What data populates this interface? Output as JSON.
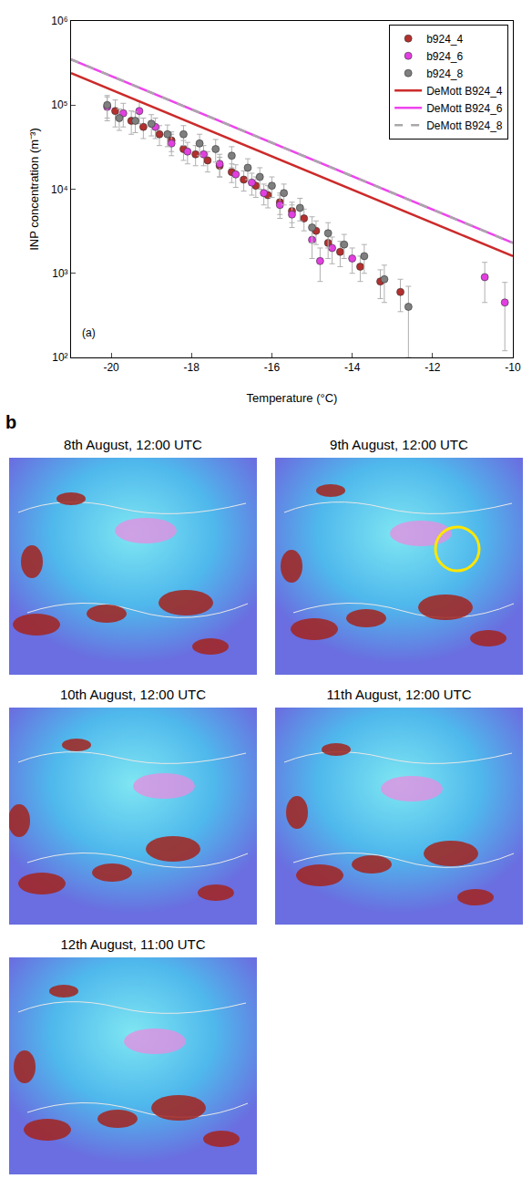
{
  "chart_data": {
    "type": "scatter",
    "panel_label": "a",
    "annotation": "(a)",
    "x_label": "Temperature (°C)",
    "y_label": "INP concentration (m⁻³)",
    "log": "y",
    "grid": false,
    "legend": "top-right",
    "xlim": [
      -21,
      -10
    ],
    "xticks": [
      -20,
      -18,
      -16,
      -14,
      -12,
      -10
    ],
    "ylim": [
      100,
      1000000
    ],
    "yticks": [
      {
        "value": 100,
        "label": "10²"
      },
      {
        "value": 1000,
        "label": "10³"
      },
      {
        "value": 10000,
        "label": "10⁴"
      },
      {
        "value": 100000,
        "label": "10⁵"
      },
      {
        "value": 1000000,
        "label": "10⁶"
      }
    ],
    "series": [
      {
        "name": "b924_4",
        "type": "scatter",
        "marker": "circle",
        "color": "#b3302e",
        "x": [
          -19.9,
          -19.5,
          -19.2,
          -18.8,
          -18.5,
          -18.2,
          -17.9,
          -17.6,
          -17.3,
          -17.0,
          -16.7,
          -16.4,
          -16.1,
          -15.8,
          -15.5,
          -15.2,
          -14.9,
          -14.6,
          -14.3,
          -13.8,
          -13.3,
          -12.8
        ],
        "values": [
          85000,
          65000,
          55000,
          45000,
          38000,
          30000,
          26000,
          22000,
          19000,
          16000,
          13000,
          11000,
          8500,
          7000,
          5500,
          4500,
          3200,
          2300,
          1800,
          1200,
          800,
          600
        ],
        "error": [
          30000,
          20000,
          15000,
          12000,
          10000,
          8000,
          7000,
          6000,
          5000,
          4000,
          3500,
          3000,
          2500,
          2000,
          1500,
          1300,
          1000,
          800,
          600,
          400,
          300,
          250
        ]
      },
      {
        "name": "b924_6",
        "type": "scatter",
        "marker": "circle",
        "color": "#e23fe0",
        "x": [
          -20.1,
          -19.7,
          -19.3,
          -18.9,
          -18.5,
          -18.1,
          -17.7,
          -17.3,
          -16.9,
          -16.5,
          -16.2,
          -15.8,
          -15.5,
          -15.0,
          -14.8,
          -14.5,
          -14.0,
          -10.7,
          -10.2
        ],
        "values": [
          95000,
          80000,
          85000,
          55000,
          35000,
          28000,
          26000,
          20000,
          15000,
          12000,
          9000,
          6500,
          5000,
          2500,
          1400,
          2000,
          1500,
          900,
          450
        ],
        "error": [
          30000,
          25000,
          25000,
          15000,
          10000,
          8000,
          7000,
          6000,
          4500,
          3500,
          2500,
          2000,
          1500,
          1000,
          600,
          700,
          500,
          450,
          330
        ]
      },
      {
        "name": "b924_8",
        "type": "scatter",
        "marker": "circle",
        "color": "#7f7f7f",
        "x": [
          -20.1,
          -19.8,
          -19.4,
          -19.0,
          -18.6,
          -18.2,
          -17.8,
          -17.4,
          -17.0,
          -16.6,
          -16.3,
          -16.0,
          -15.7,
          -15.3,
          -15.0,
          -14.6,
          -14.2,
          -13.7,
          -13.2,
          -12.6
        ],
        "values": [
          100000,
          70000,
          65000,
          60000,
          45000,
          45000,
          35000,
          30000,
          25000,
          18000,
          14000,
          11000,
          9000,
          6000,
          3500,
          3000,
          2200,
          1600,
          850,
          400
        ],
        "error": [
          30000,
          20000,
          18000,
          17000,
          13000,
          12000,
          10000,
          9000,
          7000,
          5000,
          4000,
          3000,
          2500,
          1800,
          1200,
          1000,
          700,
          600,
          400,
          300
        ]
      },
      {
        "name": "DeMott B924_4",
        "type": "line",
        "line_style": "solid",
        "color": "#cc2a2a",
        "x": [
          -21,
          -10
        ],
        "values": [
          240000,
          1600
        ]
      },
      {
        "name": "DeMott B924_6",
        "type": "line",
        "line_style": "solid",
        "color": "#ee44ee",
        "x": [
          -21,
          -10
        ],
        "values": [
          350000,
          2300
        ]
      },
      {
        "name": "DeMott B924_8",
        "type": "line",
        "line_style": "dash",
        "color": "#a8a8a8",
        "x": [
          -21,
          -10
        ],
        "values": [
          350000,
          2300
        ]
      }
    ]
  },
  "panel_b": {
    "label": "b",
    "images": [
      {
        "caption": "8th August, 12:00 UTC"
      },
      {
        "caption": "9th August, 12:00 UTC",
        "marked": true
      },
      {
        "caption": "10th August, 12:00 UTC"
      },
      {
        "caption": "11th August, 12:00 UTC"
      },
      {
        "caption": "12th August, 11:00 UTC"
      }
    ]
  }
}
